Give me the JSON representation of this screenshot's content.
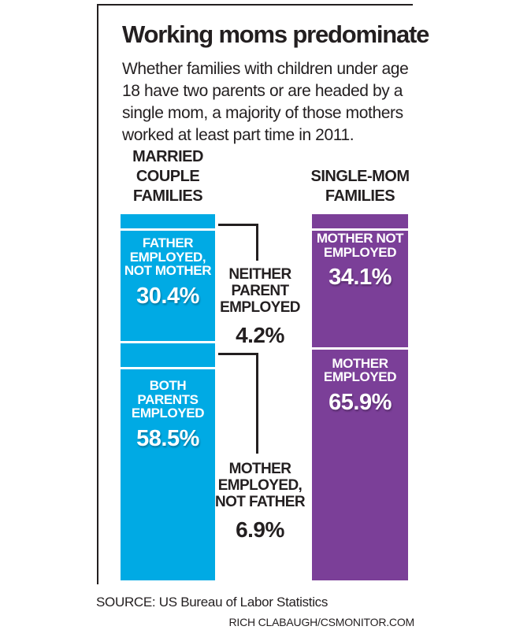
{
  "colors": {
    "bar_blue": "#00AAE4",
    "bar_purple": "#7B3F98",
    "ink": "#231F20",
    "label_on_bar": "#FFFFFF",
    "background": "#FFFFFF"
  },
  "chart_data": {
    "type": "bar",
    "variant": "stacked-percentage-columns",
    "title": "Working moms predominate",
    "subtitle": "Whether families with children under age 18 have two parents or are headed by a single mom, a majority of those mothers worked at least part time in 2011.",
    "subtitle_lines": [
      "Whether families with children under age",
      "18 have two parents or are headed by a",
      "single mom, a majority of those mothers",
      "worked at least part time in 2011."
    ],
    "unit": "%",
    "ylim": [
      0,
      100
    ],
    "legend_position": "none",
    "grid": false,
    "bars": [
      {
        "name": "MARRIED COUPLE FAMILIES",
        "name_lines": [
          "MARRIED",
          "COUPLE",
          "FAMILIES"
        ],
        "color": "#00AAE4",
        "segments": [
          {
            "label": "NEITHER PARENT EMPLOYED",
            "label_lines": [
              "NEITHER",
              "PARENT",
              "EMPLOYED"
            ],
            "value": 4.2,
            "value_label": "4.2%",
            "label_placement": "outside-right"
          },
          {
            "label": "FATHER EMPLOYED, NOT MOTHER",
            "label_lines": [
              "FATHER",
              "EMPLOYED,",
              "NOT MOTHER"
            ],
            "value": 30.4,
            "value_label": "30.4%",
            "label_placement": "inside"
          },
          {
            "label": "MOTHER EMPLOYED, NOT FATHER",
            "label_lines": [
              "MOTHER",
              "EMPLOYED,",
              "NOT FATHER"
            ],
            "value": 6.9,
            "value_label": "6.9%",
            "label_placement": "outside-right"
          },
          {
            "label": "BOTH PARENTS EMPLOYED",
            "label_lines": [
              "BOTH",
              "PARENTS",
              "EMPLOYED"
            ],
            "value": 58.5,
            "value_label": "58.5%",
            "label_placement": "inside"
          }
        ]
      },
      {
        "name": "SINGLE-MOM FAMILIES",
        "name_lines": [
          "SINGLE-MOM",
          "FAMILIES"
        ],
        "color": "#7B3F98",
        "segments": [
          {
            "label": "MOTHER NOT EMPLOYED",
            "label_lines": [
              "MOTHER NOT",
              "EMPLOYED"
            ],
            "value": 34.1,
            "value_label": "34.1%",
            "label_placement": "inside"
          },
          {
            "label": "MOTHER EMPLOYED",
            "label_lines": [
              "MOTHER",
              "EMPLOYED"
            ],
            "value": 65.9,
            "value_label": "65.9%",
            "label_placement": "inside"
          }
        ]
      }
    ],
    "source": "SOURCE: US Bureau of Labor Statistics",
    "credit": "RICH CLABAUGH/CSMONITOR.COM"
  }
}
